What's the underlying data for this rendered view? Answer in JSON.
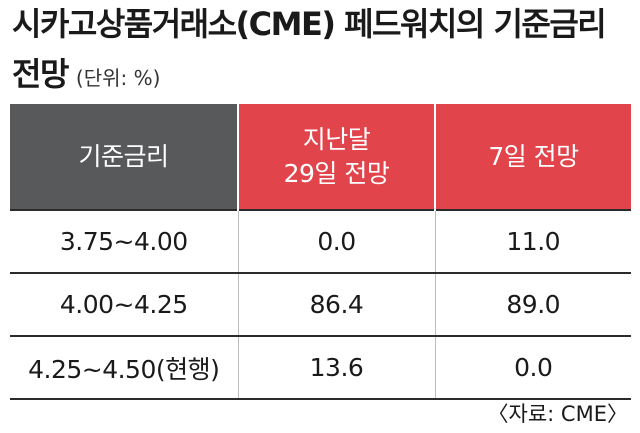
{
  "title": {
    "line1": "시카고상품거래소(CME) 페드워치의 기준금리",
    "line2": "전망",
    "unit": "(단위: %)"
  },
  "table": {
    "headers": [
      "기준금리",
      "지난달\n29일 전망",
      "7일 전망"
    ],
    "rows": [
      [
        "3.75~4.00",
        "0.0",
        "11.0"
      ],
      [
        "4.00~4.25",
        "86.4",
        "89.0"
      ],
      [
        "4.25~4.50(현행)",
        "13.6",
        "0.0"
      ]
    ]
  },
  "source": "〈자료: CME〉",
  "colors": {
    "header_gray": "#58595b",
    "header_red": "#e2444c"
  }
}
